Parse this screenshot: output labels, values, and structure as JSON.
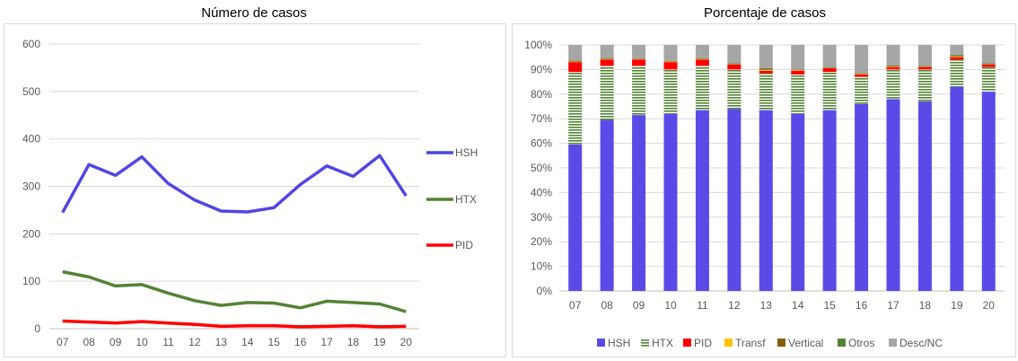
{
  "chart_data": [
    {
      "type": "line",
      "title": "Número de casos",
      "x": [
        "07",
        "08",
        "09",
        "10",
        "11",
        "12",
        "13",
        "14",
        "15",
        "16",
        "17",
        "18",
        "19",
        "20"
      ],
      "ylim": [
        0,
        600
      ],
      "yticks": [
        "0",
        "100",
        "200",
        "300",
        "400",
        "500",
        "600"
      ],
      "grid": "horizontal",
      "legend_position": "right",
      "series": [
        {
          "name": "HSH",
          "color": "#4f46e5",
          "values": [
            245,
            346,
            323,
            362,
            306,
            271,
            248,
            246,
            255,
            304,
            343,
            321,
            365,
            280
          ]
        },
        {
          "name": "HTX",
          "color": "#548235",
          "values": [
            120,
            109,
            90,
            93,
            75,
            59,
            49,
            55,
            54,
            44,
            58,
            55,
            52,
            36
          ]
        },
        {
          "name": "PID",
          "color": "#ff0000",
          "values": [
            16,
            14,
            12,
            15,
            12,
            9,
            5,
            6,
            6,
            4,
            5,
            6,
            4,
            5
          ]
        }
      ]
    },
    {
      "type": "bar",
      "stacked": true,
      "title": "Porcentaje de casos",
      "categories": [
        "07",
        "08",
        "09",
        "10",
        "11",
        "12",
        "13",
        "14",
        "15",
        "16",
        "17",
        "18",
        "19",
        "20"
      ],
      "ylim": [
        0,
        100
      ],
      "yticks": [
        "0%",
        "10%",
        "20%",
        "30%",
        "40%",
        "50%",
        "60%",
        "70%",
        "80%",
        "90%",
        "100%"
      ],
      "grid": "horizontal",
      "legend_position": "bottom",
      "series": [
        {
          "name": "HSH",
          "color": "#5a4be8",
          "pattern": "solid",
          "values": [
            59.5,
            69.5,
            71.5,
            72,
            73.5,
            74,
            73.5,
            72,
            73.5,
            76,
            78,
            77,
            83,
            81
          ]
        },
        {
          "name": "HTX",
          "color": "#548235",
          "pattern": "stripes",
          "values": [
            29.5,
            22,
            20,
            18,
            18,
            16,
            15,
            16,
            15.5,
            11,
            12,
            13,
            11,
            10
          ]
        },
        {
          "name": "PID",
          "color": "#ff0000",
          "pattern": "solid",
          "values": [
            4,
            2.5,
            2.5,
            3,
            2.5,
            2,
            1,
            1.5,
            1.5,
            1,
            1,
            1,
            1,
            1
          ]
        },
        {
          "name": "Transf",
          "color": "#ffc000",
          "pattern": "solid",
          "values": [
            0.2,
            0.2,
            0.1,
            0.2,
            0.2,
            0.1,
            0.4,
            0.2,
            0.1,
            0.2,
            0.2,
            0.1,
            0.3,
            0.1
          ]
        },
        {
          "name": "Vertical",
          "color": "#7f6000",
          "pattern": "solid",
          "values": [
            0.3,
            0.2,
            0.2,
            0.2,
            0.2,
            0.2,
            0.4,
            0.2,
            0.2,
            0.2,
            0.2,
            0.2,
            0.3,
            0.2
          ]
        },
        {
          "name": "Otros",
          "color": "#548235",
          "pattern": "solid",
          "values": [
            0.2,
            0.1,
            0.1,
            0.1,
            0.1,
            0.2,
            0.2,
            0.1,
            0.2,
            0.1,
            0.2,
            0.2,
            0.2,
            0.2
          ]
        },
        {
          "name": "Desc/NC",
          "color": "#a6a6a6",
          "pattern": "solid",
          "values": [
            6.3,
            5.5,
            5.6,
            6.5,
            5.5,
            7.5,
            9.5,
            10,
            9,
            11.5,
            8.4,
            8.5,
            4.2,
            7.5
          ]
        }
      ]
    }
  ]
}
